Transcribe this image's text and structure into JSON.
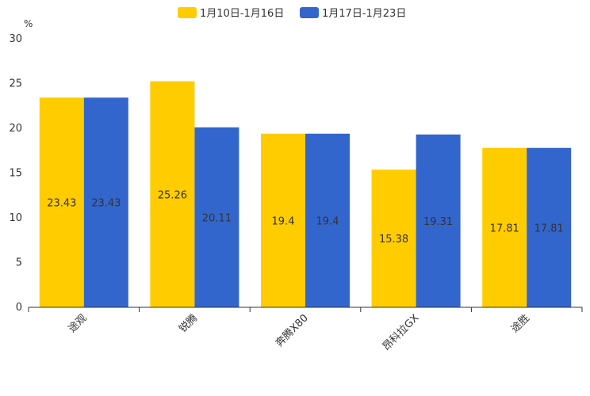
{
  "chart_data": {
    "type": "bar",
    "title": "",
    "ylabel": "%",
    "xlabel": "",
    "ylim": [
      0,
      30
    ],
    "yticks": [
      0,
      5,
      10,
      15,
      20,
      25,
      30
    ],
    "categories": [
      "途观",
      "锐腾",
      "奔腾X80",
      "昂科拉GX",
      "途胜"
    ],
    "series": [
      {
        "name": "1月10日-1月16日",
        "color": "#FFCC00",
        "values": [
          23.43,
          25.26,
          19.4,
          15.38,
          17.81
        ]
      },
      {
        "name": "1月17日-1月23日",
        "color": "#3366CC",
        "values": [
          23.43,
          20.11,
          19.4,
          19.31,
          17.81
        ]
      }
    ],
    "legend_position": "top-center",
    "data_labels": true
  }
}
